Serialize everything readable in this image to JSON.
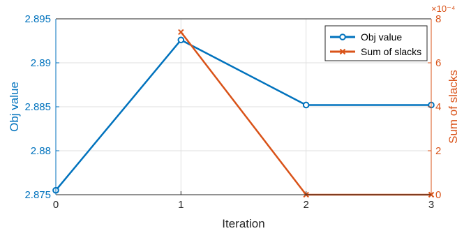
{
  "colors": {
    "obj": "#0072BD",
    "slack": "#D95319",
    "axis_black": "#262626",
    "grid": "#dfdfdf"
  },
  "chart_data": {
    "type": "line",
    "xlabel": "Iteration",
    "ylabel_left": "Obj value",
    "ylabel_right": "Sum of slacks",
    "right_exponent": "×10⁻⁴",
    "x_ticks": [
      "0",
      "1",
      "2",
      "3"
    ],
    "y_left_ticks": [
      "2.875",
      "2.88",
      "2.885",
      "2.89",
      "2.895"
    ],
    "y_right_ticks": [
      "0",
      "2",
      "4",
      "6",
      "8"
    ],
    "xlim": [
      0,
      3
    ],
    "ylim_left": [
      2.875,
      2.895
    ],
    "ylim_right": [
      0,
      0.0008
    ],
    "grid": true,
    "legend_position": "top-right",
    "series": [
      {
        "name": "Obj value",
        "axis": "left",
        "marker": "circle",
        "x": [
          0,
          1,
          2,
          3
        ],
        "values": [
          2.8755,
          2.8926,
          2.8852,
          2.8852
        ]
      },
      {
        "name": "Sum of slacks",
        "axis": "right",
        "marker": "x",
        "x": [
          1,
          2,
          3
        ],
        "values": [
          0.00074,
          0,
          0
        ]
      }
    ]
  }
}
